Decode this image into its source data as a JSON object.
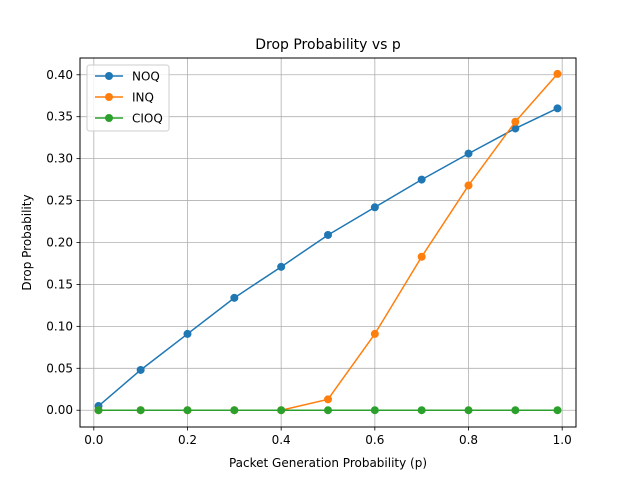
{
  "chart_data": {
    "type": "line",
    "title": "Drop Probability vs p",
    "xlabel": "Packet Generation Probability (p)",
    "ylabel": "Drop Probability",
    "xlim": [
      -0.0295,
      1.0295
    ],
    "ylim": [
      -0.02,
      0.42
    ],
    "x_ticks": [
      0.0,
      0.2,
      0.4,
      0.6,
      0.8,
      1.0
    ],
    "x_tick_labels": [
      "0.0",
      "0.2",
      "0.4",
      "0.6",
      "0.8",
      "1.0"
    ],
    "y_ticks": [
      0.0,
      0.05,
      0.1,
      0.15,
      0.2,
      0.25,
      0.3,
      0.35,
      0.4
    ],
    "y_tick_labels": [
      "0.00",
      "0.05",
      "0.10",
      "0.15",
      "0.20",
      "0.25",
      "0.30",
      "0.35",
      "0.40"
    ],
    "grid": true,
    "legend_position": "top-left",
    "x": [
      0.01,
      0.1,
      0.2,
      0.3,
      0.4,
      0.5,
      0.6,
      0.7,
      0.8,
      0.9,
      0.99
    ],
    "series": [
      {
        "name": "NOQ",
        "color": "#1f77b4",
        "values": [
          0.005,
          0.048,
          0.091,
          0.134,
          0.171,
          0.209,
          0.242,
          0.275,
          0.306,
          0.336,
          0.36
        ]
      },
      {
        "name": "INQ",
        "color": "#ff7f0e",
        "values": [
          0.0,
          0.0,
          0.0,
          0.0,
          0.0,
          0.013,
          0.091,
          0.183,
          0.268,
          0.344,
          0.401
        ]
      },
      {
        "name": "CIOQ",
        "color": "#2ca02c",
        "values": [
          0.0,
          0.0,
          0.0,
          0.0,
          0.0,
          0.0,
          0.0,
          0.0,
          0.0,
          0.0,
          0.0
        ]
      }
    ]
  }
}
